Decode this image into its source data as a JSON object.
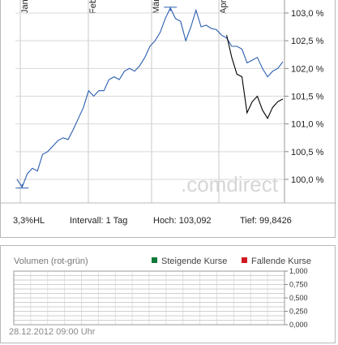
{
  "chart_data": [
    {
      "type": "line",
      "months": [
        "Jan",
        "Feb",
        "Mär",
        "Apr"
      ],
      "y_ticks": [
        "103,0 %",
        "102,5 %",
        "102,0 %",
        "101,5 %",
        "101,0 %",
        "100,5 %",
        "100,0 %"
      ],
      "y_tick_values": [
        103.0,
        102.5,
        102.0,
        101.5,
        101.0,
        100.5,
        100.0
      ],
      "ylim": [
        99.8,
        103.2
      ],
      "watermark": ".comdirect",
      "series": [
        {
          "color": "#2a5db0",
          "values": [
            100.0,
            99.86,
            100.1,
            100.2,
            100.15,
            100.45,
            100.5,
            100.6,
            100.7,
            100.75,
            100.72,
            100.9,
            101.1,
            101.3,
            101.6,
            101.5,
            101.6,
            101.6,
            101.8,
            101.85,
            101.8,
            101.95,
            102.0,
            101.95,
            102.05,
            102.2,
            102.4,
            102.5,
            102.65,
            102.9,
            103.09,
            102.9,
            102.85,
            102.5,
            102.75,
            103.05,
            102.75,
            102.78,
            102.72,
            102.7,
            102.6,
            102.55,
            102.4,
            102.4,
            102.35,
            102.1,
            102.15,
            102.2,
            102.0,
            101.85,
            101.95,
            102.0,
            102.12
          ]
        },
        {
          "color": "#000000",
          "values": [
            null,
            null,
            null,
            null,
            null,
            null,
            null,
            null,
            null,
            null,
            null,
            null,
            null,
            null,
            null,
            null,
            null,
            null,
            null,
            null,
            null,
            null,
            null,
            null,
            null,
            null,
            null,
            null,
            null,
            null,
            null,
            null,
            null,
            null,
            null,
            null,
            null,
            null,
            null,
            null,
            null,
            102.6,
            102.2,
            101.9,
            101.85,
            101.2,
            101.4,
            101.5,
            101.25,
            101.1,
            101.3,
            101.4,
            101.45
          ]
        }
      ]
    },
    {
      "type": "bar",
      "title": "Volumen (rot-grün)",
      "y_ticks": [
        "1,000",
        "0,750",
        "0,500",
        "0,250",
        "0,000"
      ],
      "ylim": [
        0,
        1
      ],
      "legend": [
        {
          "name": "Steigende Kurse",
          "color": "#0e7a3a"
        },
        {
          "name": "Fallende Kurse",
          "color": "#d01820"
        }
      ]
    }
  ],
  "info": {
    "range": "3,3%HL",
    "interval": "Intervall: 1 Tag",
    "high": "Hoch:  103,092",
    "low": "Tief:  99,8426"
  },
  "timestamp": "28.12.2012 09:00 Uhr"
}
